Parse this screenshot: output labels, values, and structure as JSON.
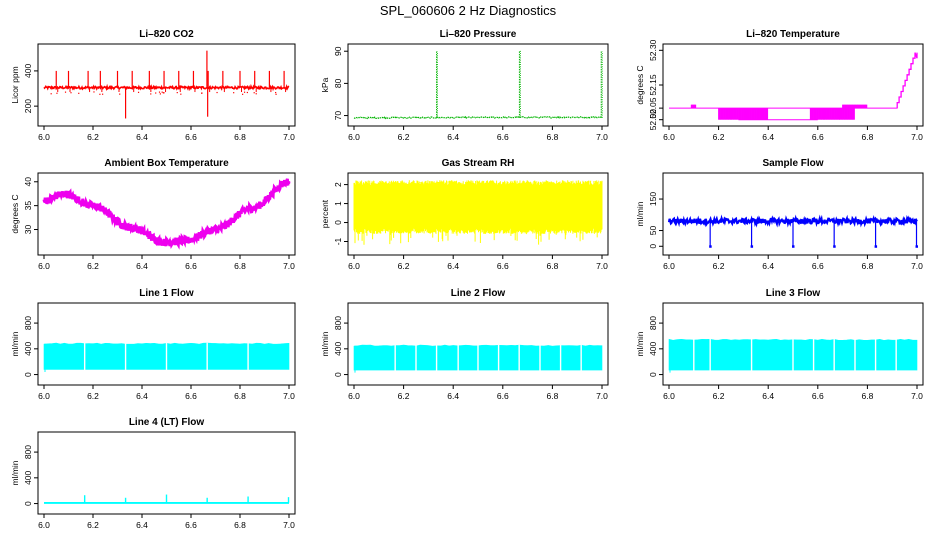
{
  "title": "SPL_060606  2 Hz Diagnostics",
  "colors": {
    "co2": "#ff0000",
    "pressure": "#00b400",
    "temperature": "#ff00ff",
    "ambient": "#ee00ee",
    "rh": "#ffff00",
    "sample_flow": "#0000ff",
    "line_flow": "#00ffff",
    "axis": "#000000"
  },
  "chart_data": [
    {
      "id": "co2",
      "type": "line",
      "title": "Li–820 CO2",
      "ylabel": "Licor ppm",
      "xlim": [
        6.0,
        7.0
      ],
      "ylim": [
        110,
        530
      ],
      "xticks": [
        "6.0",
        "6.2",
        "6.4",
        "6.6",
        "6.8",
        "7.0"
      ],
      "yticks": [
        200,
        400
      ],
      "color": "#ff0000",
      "baseline": 305,
      "spikes_x": [
        6.05,
        6.1,
        6.18,
        6.23,
        6.3,
        6.36,
        6.43,
        6.49,
        6.55,
        6.61,
        6.67,
        6.73,
        6.8,
        6.86,
        6.92,
        6.98
      ],
      "spike_top": 400,
      "extremes": [
        {
          "x": 6.333,
          "y": 130
        },
        {
          "x": 6.665,
          "y": 515
        },
        {
          "x": 6.668,
          "y": 140
        }
      ]
    },
    {
      "id": "pressure",
      "type": "line",
      "title": "Li–820 Pressure",
      "ylabel": "kPa",
      "xlim": [
        6.0,
        7.0
      ],
      "ylim": [
        68,
        91
      ],
      "xticks": [
        "6.0",
        "6.2",
        "6.4",
        "6.6",
        "6.8",
        "7.0"
      ],
      "yticks": [
        70,
        80,
        90
      ],
      "color": "#00b400",
      "baseline": 69.3,
      "spikes": [
        {
          "x": 6.333,
          "y": 89.9
        },
        {
          "x": 6.667,
          "y": 90.2
        },
        {
          "x": 6.997,
          "y": 89.9
        }
      ]
    },
    {
      "id": "licor_temp",
      "type": "line",
      "title": "Li–820 Temperature",
      "ylabel": "degrees C",
      "xlim": [
        6.0,
        7.0
      ],
      "ylim": [
        51.99,
        52.31
      ],
      "xticks": [
        "6.0",
        "6.2",
        "6.4",
        "6.6",
        "6.8",
        "7.0"
      ],
      "yticks": [
        "52.00",
        "52.05",
        "52.15",
        "52.30"
      ],
      "color": "#ff00ff",
      "baseline": 52.05
    },
    {
      "id": "ambient",
      "type": "line",
      "title": "Ambient Box Temperature",
      "ylabel": "degrees C",
      "xlim": [
        6.0,
        7.0
      ],
      "ylim": [
        25.5,
        41
      ],
      "xticks": [
        "6.0",
        "6.2",
        "6.4",
        "6.6",
        "6.8",
        "7.0"
      ],
      "yticks": [
        30,
        35,
        40
      ],
      "color": "#ee00ee",
      "key_points": [
        {
          "x": 6.0,
          "y": 36
        },
        {
          "x": 6.08,
          "y": 37.5
        },
        {
          "x": 6.2,
          "y": 35
        },
        {
          "x": 6.35,
          "y": 30.5
        },
        {
          "x": 6.5,
          "y": 27.3
        },
        {
          "x": 6.58,
          "y": 27.7
        },
        {
          "x": 6.7,
          "y": 30
        },
        {
          "x": 6.85,
          "y": 34.5
        },
        {
          "x": 7.0,
          "y": 40
        }
      ]
    },
    {
      "id": "rh",
      "type": "area",
      "title": "Gas Stream RH",
      "ylabel": "percent",
      "xlim": [
        6.0,
        7.0
      ],
      "ylim": [
        -1.5,
        2.4
      ],
      "xticks": [
        "6.0",
        "6.2",
        "6.4",
        "6.6",
        "6.8",
        "7.0"
      ],
      "yticks": [
        -1,
        0,
        1,
        2
      ],
      "color": "#ffff00",
      "band_low": -0.3,
      "band_high": 2.1
    },
    {
      "id": "sample_flow",
      "type": "line",
      "title": "Sample Flow",
      "ylabel": "ml/min",
      "xlim": [
        6.0,
        7.0
      ],
      "ylim": [
        -15,
        220
      ],
      "xticks": [
        "6.0",
        "6.2",
        "6.4",
        "6.6",
        "6.8",
        "7.0"
      ],
      "yticks": [
        0,
        50,
        150
      ],
      "color": "#0000ff",
      "baseline": 80,
      "dips_x": [
        6.166,
        6.333,
        6.5,
        6.666,
        6.833,
        6.998
      ]
    },
    {
      "id": "line1",
      "type": "area",
      "title": "Line 1 Flow",
      "ylabel": "ml/min",
      "xlim": [
        6.0,
        7.0
      ],
      "ylim": [
        -100,
        1050
      ],
      "xticks": [
        "6.0",
        "6.2",
        "6.4",
        "6.6",
        "6.8",
        "7.0"
      ],
      "yticks": [
        0,
        400,
        800
      ],
      "color": "#00ffff",
      "band_low": 80,
      "band_high": 480,
      "gaps_x": [
        6.166,
        6.333,
        6.5,
        6.666,
        6.833
      ]
    },
    {
      "id": "line2",
      "type": "area",
      "title": "Line 2 Flow",
      "ylabel": "ml/min",
      "xlim": [
        6.0,
        7.0
      ],
      "ylim": [
        -100,
        1050
      ],
      "xticks": [
        "6.0",
        "6.2",
        "6.4",
        "6.6",
        "6.8",
        "7.0"
      ],
      "yticks": [
        0,
        400,
        800
      ],
      "color": "#00ffff",
      "band_low": 70,
      "band_high": 450,
      "gaps_x": [
        6.166,
        6.25,
        6.333,
        6.42,
        6.5,
        6.583,
        6.666,
        6.75,
        6.833,
        6.916
      ]
    },
    {
      "id": "line3",
      "type": "area",
      "title": "Line 3 Flow",
      "ylabel": "ml/min",
      "xlim": [
        6.0,
        7.0
      ],
      "ylim": [
        -100,
        1050
      ],
      "xticks": [
        "6.0",
        "6.2",
        "6.4",
        "6.6",
        "6.8",
        "7.0"
      ],
      "yticks": [
        0,
        400,
        800
      ],
      "color": "#00ffff",
      "band_low": 70,
      "band_high": 540,
      "gaps_x": [
        6.1,
        6.166,
        6.333,
        6.5,
        6.583,
        6.666,
        6.75,
        6.833,
        6.916
      ]
    },
    {
      "id": "line4",
      "type": "line",
      "title": "Line 4 (LT) Flow",
      "ylabel": "ml/min",
      "xlim": [
        6.0,
        7.0
      ],
      "ylim": [
        -100,
        1050
      ],
      "xticks": [
        "6.0",
        "6.2",
        "6.4",
        "6.6",
        "6.8",
        "7.0"
      ],
      "yticks": [
        0,
        400,
        800
      ],
      "color": "#00ffff",
      "baseline": 10,
      "spikes": [
        {
          "x": 6.166,
          "y": 130
        },
        {
          "x": 6.333,
          "y": 90
        },
        {
          "x": 6.5,
          "y": 140
        },
        {
          "x": 6.666,
          "y": 90
        },
        {
          "x": 6.833,
          "y": 110
        },
        {
          "x": 6.998,
          "y": 100
        }
      ]
    }
  ]
}
